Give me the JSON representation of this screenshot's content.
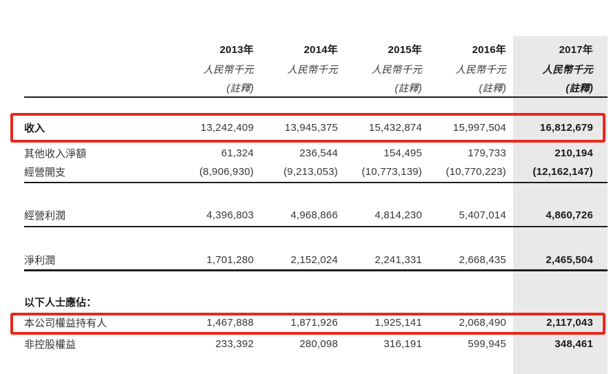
{
  "table": {
    "columns": [
      {
        "year": "2013年",
        "unit": "人民幣千元",
        "note": "(註釋)",
        "highlight": false
      },
      {
        "year": "2014年",
        "unit": "人民幣千元",
        "note": "",
        "highlight": false
      },
      {
        "year": "2015年",
        "unit": "人民幣千元",
        "note": "(註釋)",
        "highlight": false
      },
      {
        "year": "2016年",
        "unit": "人民幣千元",
        "note": "(註釋)",
        "highlight": false
      },
      {
        "year": "2017年",
        "unit": "人民幣千元",
        "note": "(註釋)",
        "highlight": true
      }
    ],
    "rows": [
      {
        "id": "revenue",
        "label": "收入",
        "bold_label": true,
        "highlight_box": true,
        "values": [
          "13,242,409",
          "13,945,375",
          "15,432,874",
          "15,997,504",
          "16,812,679"
        ]
      },
      {
        "id": "other-income-net",
        "label": "其他收入淨額",
        "bold_label": false,
        "highlight_box": false,
        "values": [
          "61,324",
          "236,544",
          "154,495",
          "179,733",
          "210,194"
        ]
      },
      {
        "id": "operating-expenses",
        "label": "經營開支",
        "bold_label": false,
        "highlight_box": false,
        "values": [
          "(8,906,930)",
          "(9,213,053)",
          "(10,773,139)",
          "(10,770,223)",
          "(12,162,147)"
        ]
      },
      {
        "id": "operating-profit",
        "label": "經營利潤",
        "bold_label": false,
        "highlight_box": false,
        "values": [
          "4,396,803",
          "4,968,866",
          "4,814,230",
          "5,407,014",
          "4,860,726"
        ]
      },
      {
        "id": "net-profit",
        "label": "淨利潤",
        "bold_label": false,
        "highlight_box": false,
        "values": [
          "1,701,280",
          "2,152,024",
          "2,241,331",
          "2,668,435",
          "2,465,504"
        ]
      },
      {
        "id": "attributable-to",
        "label": "以下人士應佔：",
        "bold_label": true,
        "highlight_box": false,
        "values": [
          "",
          "",
          "",
          "",
          ""
        ]
      },
      {
        "id": "equity-holders",
        "label": "本公司權益持有人",
        "bold_label": false,
        "highlight_box": true,
        "values": [
          "1,467,888",
          "1,871,926",
          "1,925,141",
          "2,068,490",
          "2,117,043"
        ]
      },
      {
        "id": "non-controlling-interests",
        "label": "非控股權益",
        "bold_label": false,
        "highlight_box": false,
        "values": [
          "233,392",
          "280,098",
          "316,191",
          "599,945",
          "348,461"
        ]
      }
    ]
  },
  "colors": {
    "highlight_red": "#e8281b",
    "column_gray": "#e9e9e9",
    "line_black": "#1c1c1c"
  }
}
